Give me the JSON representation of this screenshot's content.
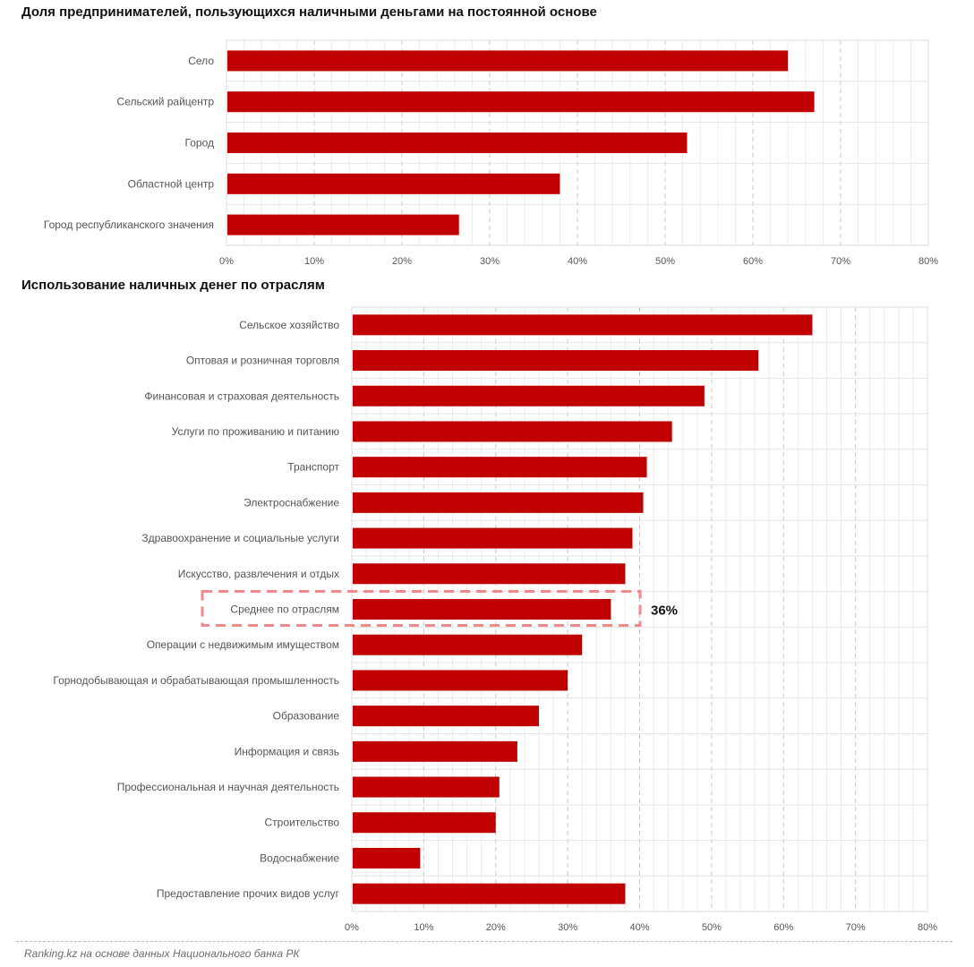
{
  "colors": {
    "bar": "#c00000",
    "grid": "#d9d9d9",
    "highlight": "#f08a8a"
  },
  "charts": [
    {
      "title": "Доля предпринимателей, пользующихся наличными деньгами на постоянной основе"
    },
    {
      "title": "Использование наличных денег по отраслям",
      "highlight": {
        "category": "Среднее по отраслям",
        "label": "36%"
      }
    }
  ],
  "chart_data": [
    {
      "type": "bar",
      "orientation": "horizontal",
      "title": "Доля предпринимателей, пользующихся наличными деньгами на постоянной основе",
      "categories": [
        "Село",
        "Сельский райцентр",
        "Город",
        "Областной центр",
        "Город республиканского значения"
      ],
      "values": [
        64,
        67,
        52.5,
        38,
        26.5
      ],
      "xlim": [
        0,
        80
      ],
      "xticks": [
        "0%",
        "10%",
        "20%",
        "30%",
        "40%",
        "50%",
        "60%",
        "70%",
        "80%"
      ],
      "grid": true,
      "legend": "none"
    },
    {
      "type": "bar",
      "orientation": "horizontal",
      "title": "Использование наличных денег по отраслям",
      "categories": [
        "Сельское хозяйство",
        "Оптовая и розничная торговля",
        "Финансовая и страховая деятельность",
        "Услуги по проживанию и питанию",
        "Транспорт",
        "Электроснабжение",
        "Здравоохранение и социальные услуги",
        "Искусство, развлечения и отдых",
        "Среднее по отраслям",
        "Операции с недвижимым имуществом",
        "Горнодобывающая и обрабатывающая промышленность",
        "Образование",
        "Информация и связь",
        "Профессиональная и научная деятельность",
        "Строительство",
        "Водоснабжение",
        "Предоставление прочих видов услуг"
      ],
      "values": [
        64,
        56.5,
        49,
        44.5,
        41,
        40.5,
        39,
        38,
        36,
        32,
        30,
        26,
        23,
        20.5,
        20,
        9.5,
        38
      ],
      "xlim": [
        0,
        80
      ],
      "xticks": [
        "0%",
        "10%",
        "20%",
        "30%",
        "40%",
        "50%",
        "60%",
        "70%",
        "80%"
      ],
      "grid": true,
      "legend": "none",
      "annotation": {
        "category": "Среднее по отраслям",
        "text": "36%"
      }
    }
  ],
  "footer": {
    "source": "Ranking.kz на основе данных Национального банка РК"
  }
}
